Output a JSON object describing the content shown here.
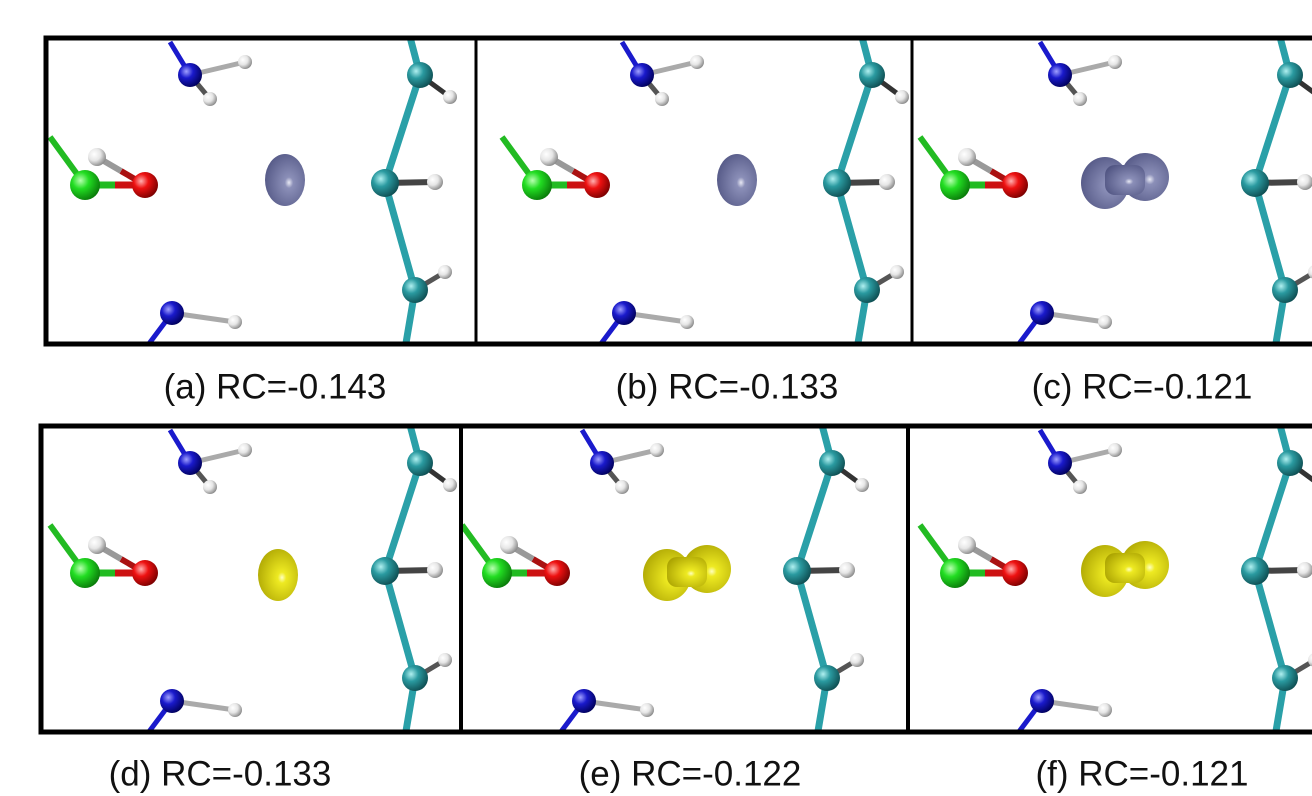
{
  "figure": {
    "panels": [
      {
        "caption": "(a) RC=-0.143"
      },
      {
        "caption": "(b) RC=-0.133"
      },
      {
        "caption": "(c) RC=-0.121"
      },
      {
        "caption": "(d) RC=-0.133"
      },
      {
        "caption": "(e) RC=-0.122"
      },
      {
        "caption": "(f) RC=-0.121"
      }
    ]
  }
}
